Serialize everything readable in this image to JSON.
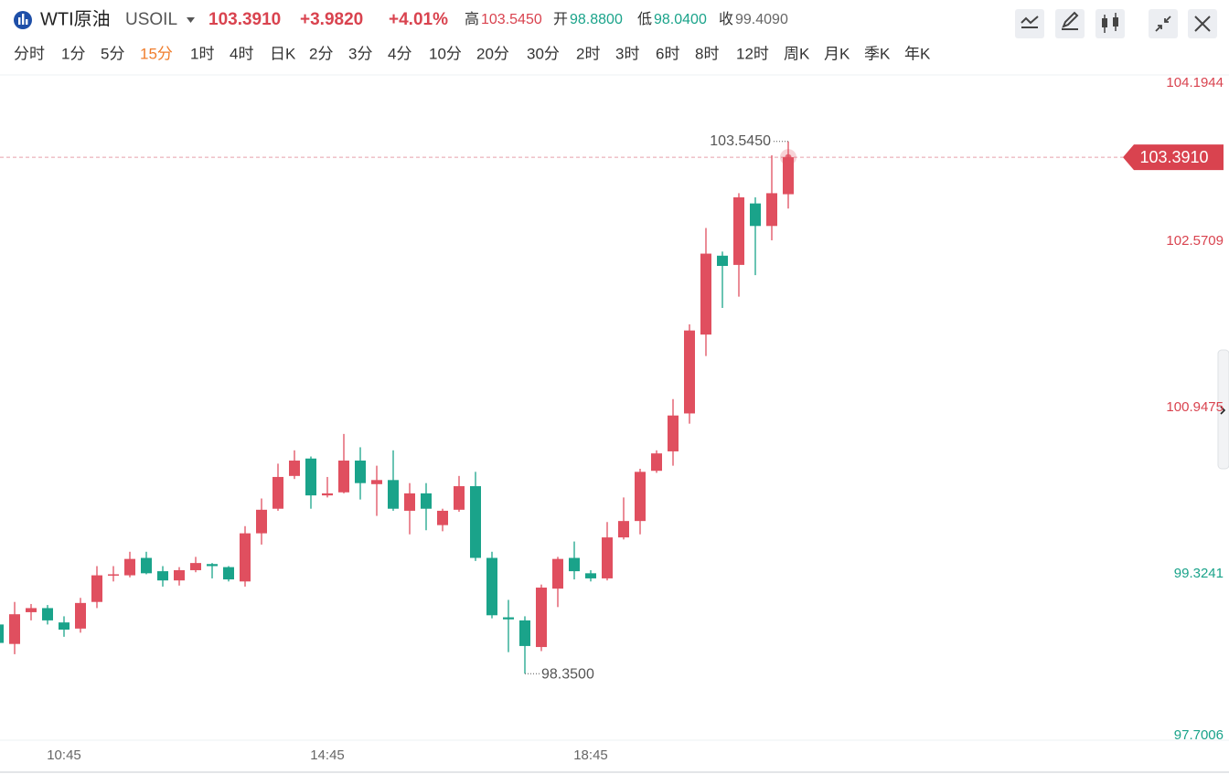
{
  "header": {
    "name": "WTI原油",
    "symbol": "USOIL",
    "price": "103.3910",
    "change": "+3.9820",
    "change_pct": "+4.01%",
    "stats": [
      {
        "label": "高",
        "value": "103.5450"
      },
      {
        "label": "开",
        "value": "98.8800"
      },
      {
        "label": "低",
        "value": "98.0400"
      },
      {
        "label": "收",
        "value": "99.4090"
      }
    ]
  },
  "tabs": [
    "分时",
    "1分",
    "5分",
    "15分",
    "1时",
    "4时",
    "日K",
    "2分",
    "3分",
    "4分",
    "10分",
    "20分",
    "30分",
    "2时",
    "3时",
    "6时",
    "8时",
    "12时",
    "周K",
    "月K",
    "季K",
    "年K"
  ],
  "active_tab": 3,
  "chart_data": {
    "type": "candlestick",
    "categories": [
      null,
      null,
      null,
      null,
      "10:45",
      null,
      null,
      null,
      null,
      null,
      null,
      null,
      null,
      null,
      null,
      null,
      null,
      null,
      null,
      null,
      "14:45",
      null,
      null,
      null,
      null,
      null,
      null,
      null,
      null,
      null,
      null,
      null,
      null,
      null,
      null,
      null,
      "18:45",
      null,
      null,
      null,
      null,
      null,
      null,
      null,
      null,
      null,
      null,
      null,
      null
    ],
    "open": [
      98.83,
      98.64,
      98.95,
      98.99,
      98.85,
      98.79,
      99.05,
      99.31,
      99.31,
      99.48,
      99.35,
      99.26,
      99.36,
      99.42,
      99.39,
      99.25,
      99.72,
      99.96,
      100.28,
      100.45,
      100.09,
      100.12,
      100.43,
      100.2,
      100.24,
      99.94,
      100.11,
      99.8,
      99.95,
      100.18,
      99.48,
      98.9,
      98.87,
      98.61,
      99.18,
      99.48,
      99.33,
      99.28,
      99.68,
      99.84,
      100.33,
      100.52,
      100.89,
      101.66,
      102.43,
      102.34,
      102.94,
      102.72,
      103.03
    ],
    "high": [
      98.87,
      99.05,
      99.03,
      99.02,
      98.91,
      99.09,
      99.4,
      99.4,
      99.54,
      99.54,
      99.4,
      99.39,
      99.49,
      99.43,
      99.4,
      99.79,
      100.06,
      100.4,
      100.53,
      100.47,
      100.27,
      100.69,
      100.56,
      100.38,
      100.53,
      100.21,
      100.21,
      99.96,
      100.28,
      100.32,
      99.54,
      99.07,
      98.91,
      99.22,
      99.49,
      99.64,
      99.36,
      99.83,
      100.07,
      100.35,
      100.53,
      101.03,
      101.76,
      102.7,
      102.47,
      103.04,
      103.0,
      103.41,
      103.545
    ],
    "low": [
      98.59,
      98.54,
      98.87,
      98.83,
      98.71,
      98.75,
      98.99,
      99.25,
      99.29,
      99.32,
      99.2,
      99.21,
      99.34,
      99.28,
      99.25,
      99.2,
      99.61,
      99.94,
      100.25,
      99.96,
      100.07,
      100.11,
      100.05,
      99.89,
      99.94,
      99.71,
      99.75,
      99.74,
      99.93,
      99.45,
      98.89,
      98.56,
      98.35,
      98.57,
      99.0,
      99.27,
      99.25,
      99.26,
      99.66,
      99.71,
      100.31,
      100.38,
      100.79,
      101.45,
      101.92,
      102.03,
      102.24,
      102.58,
      102.89
    ],
    "close": [
      98.65,
      98.93,
      98.99,
      98.87,
      98.78,
      99.04,
      99.31,
      99.32,
      99.47,
      99.33,
      99.26,
      99.36,
      99.43,
      99.4,
      99.27,
      99.72,
      99.95,
      100.27,
      100.43,
      100.09,
      100.11,
      100.43,
      100.21,
      100.24,
      99.96,
      100.11,
      99.96,
      99.94,
      100.18,
      99.48,
      98.92,
      98.88,
      98.62,
      99.19,
      99.47,
      99.35,
      99.28,
      99.68,
      99.84,
      100.32,
      100.5,
      100.87,
      101.7,
      102.45,
      102.33,
      103.0,
      102.72,
      103.04,
      103.391
    ],
    "up_color": "#e04f5f",
    "down_color": "#1aa38a",
    "ylim": [
      97.7006,
      104.1944
    ],
    "yticks": [
      104.1944,
      102.5709,
      100.9475,
      99.3241,
      97.7006
    ],
    "ytick_colors": [
      "#d9434f",
      "#d9434f",
      "#d9434f",
      "#1aa38a",
      "#1aa38a"
    ],
    "last_price": {
      "value": 103.391,
      "label": "103.3910"
    },
    "high_label": {
      "value": 103.545,
      "label": "103.5450"
    },
    "low_label": {
      "value": 98.35,
      "label": "98.3500"
    },
    "grid": false
  }
}
